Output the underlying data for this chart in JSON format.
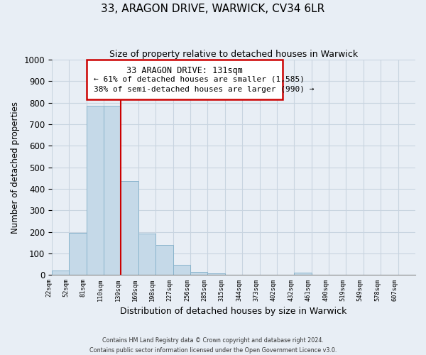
{
  "title": "33, ARAGON DRIVE, WARWICK, CV34 6LR",
  "subtitle": "Size of property relative to detached houses in Warwick",
  "xlabel": "Distribution of detached houses by size in Warwick",
  "ylabel": "Number of detached properties",
  "bar_labels": [
    "22sqm",
    "52sqm",
    "81sqm",
    "110sqm",
    "139sqm",
    "169sqm",
    "198sqm",
    "227sqm",
    "256sqm",
    "285sqm",
    "315sqm",
    "344sqm",
    "373sqm",
    "402sqm",
    "432sqm",
    "461sqm",
    "490sqm",
    "519sqm",
    "549sqm",
    "578sqm",
    "607sqm"
  ],
  "bar_values": [
    20,
    196,
    785,
    785,
    437,
    191,
    140,
    48,
    15,
    8,
    0,
    0,
    0,
    0,
    10,
    0,
    0,
    0,
    0,
    0,
    0
  ],
  "bar_color": "#c5d9e8",
  "bar_edge_color": "#8ab4cc",
  "vline_x_index": 3,
  "vline_color": "#cc0000",
  "annotation_title": "33 ARAGON DRIVE: 131sqm",
  "annotation_line1": "← 61% of detached houses are smaller (1,585)",
  "annotation_line2": "38% of semi-detached houses are larger (990) →",
  "annotation_box_color": "#ffffff",
  "annotation_box_edge": "#cc0000",
  "ylim": [
    0,
    1000
  ],
  "yticks": [
    0,
    100,
    200,
    300,
    400,
    500,
    600,
    700,
    800,
    900,
    1000
  ],
  "footnote1": "Contains HM Land Registry data © Crown copyright and database right 2024.",
  "footnote2": "Contains public sector information licensed under the Open Government Licence v3.0.",
  "bg_color": "#e8eef5",
  "grid_color": "#c8d4e0"
}
